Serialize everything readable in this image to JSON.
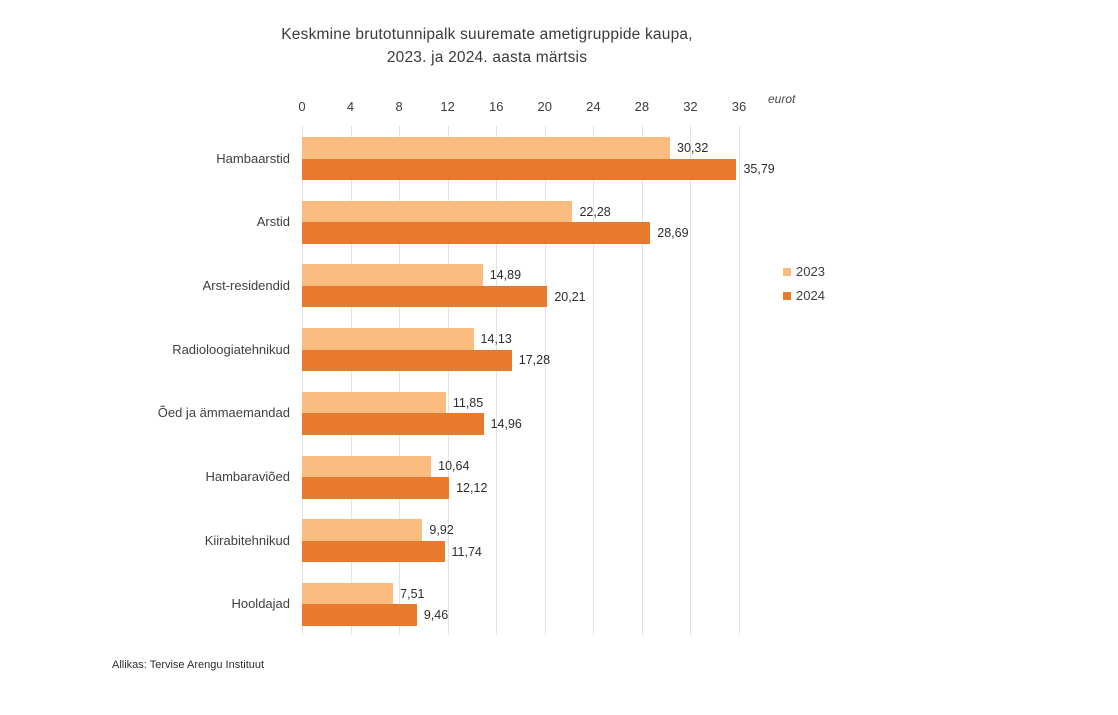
{
  "title": {
    "line1": "Keskmine brutotunnipalk suuremate ametigruppide kaupa,",
    "line2": "2023. ja 2024. aasta märtsis"
  },
  "source": "Allikas: Tervise Arengu Instituut",
  "chart_data": {
    "type": "bar",
    "orientation": "horizontal",
    "title": "Keskmine brutotunnipalk suuremate ametigruppide kaupa, 2023. ja 2024. aasta märtsis",
    "categories": [
      "Hambaarstid",
      "Arstid",
      "Arst-residendid",
      "Radioloogiatehnikud",
      "Õed ja ämmaemandad",
      "Hambaraviõed",
      "Kiirabitehnikud",
      "Hooldajad"
    ],
    "series": [
      {
        "name": "2023",
        "color": "#FBBC80",
        "values": [
          30.32,
          22.28,
          14.89,
          14.13,
          11.85,
          10.64,
          9.92,
          7.51
        ],
        "labels": [
          "30,32",
          "22,28",
          "14,89",
          "14,13",
          "11,85",
          "10,64",
          "9,92",
          "7,51"
        ]
      },
      {
        "name": "2024",
        "color": "#E87A2D",
        "values": [
          35.79,
          28.69,
          20.21,
          17.28,
          14.96,
          12.12,
          11.74,
          9.46
        ],
        "labels": [
          "35,79",
          "28,69",
          "20,21",
          "17,28",
          "14,96",
          "12,12",
          "11,74",
          "9,46"
        ]
      }
    ],
    "x_axis": {
      "ticks": [
        0,
        4,
        8,
        12,
        16,
        20,
        24,
        28,
        32,
        36
      ],
      "min": 0,
      "max": 36,
      "unit": "eurot"
    },
    "grid": true,
    "legend_position": "right",
    "value_label_decimal_separator": ","
  }
}
